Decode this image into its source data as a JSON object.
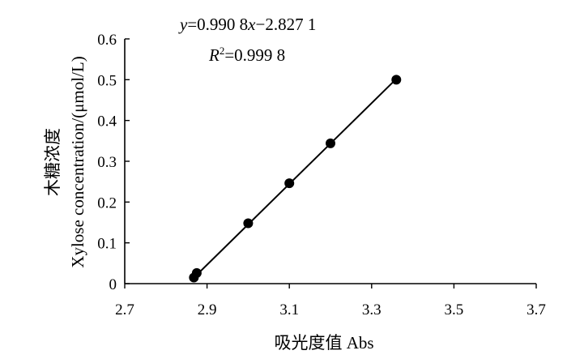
{
  "chart_data": {
    "type": "scatter",
    "xlabel": "吸光度值  Abs",
    "ylabel_cn": "木糖浓度",
    "ylabel_en": "Xylose concentration/(μmol/L)",
    "equation": {
      "y_var": "y",
      "eq_mid": "=0.990 8",
      "x_var": "x",
      "eq_tail": "−2.827 1",
      "r_var": "R",
      "r_sup": "2",
      "r_val": "=0.999 8"
    },
    "xlim": [
      2.7,
      3.7
    ],
    "ylim": [
      0,
      0.6
    ],
    "x_ticks": [
      2.7,
      2.9,
      3.1,
      3.3,
      3.5,
      3.7
    ],
    "x_tick_labels": [
      "2.7",
      "2.9",
      "3.1",
      "3.3",
      "3.5",
      "3.7"
    ],
    "y_ticks": [
      0,
      0.1,
      0.2,
      0.3,
      0.4,
      0.5,
      0.6
    ],
    "y_tick_labels": [
      "0",
      "0.1",
      "0.2",
      "0.3",
      "0.4",
      "0.5",
      "0.6"
    ],
    "grid": false,
    "series": [
      {
        "points": [
          {
            "x": 2.868,
            "y": 0.015
          },
          {
            "x": 2.875,
            "y": 0.026
          },
          {
            "x": 3.0,
            "y": 0.148
          },
          {
            "x": 3.1,
            "y": 0.246
          },
          {
            "x": 3.2,
            "y": 0.344
          },
          {
            "x": 3.36,
            "y": 0.5
          }
        ],
        "fit": {
          "slope": 0.9908,
          "intercept": -2.8271
        }
      }
    ]
  }
}
